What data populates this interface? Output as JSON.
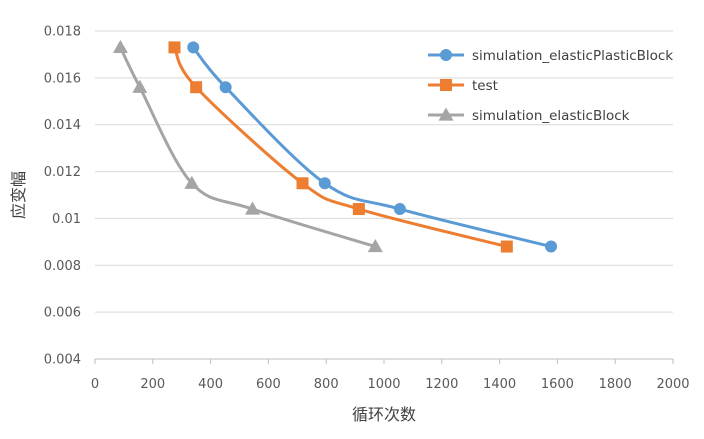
{
  "chart_data": {
    "type": "scatter",
    "title": "",
    "xlabel": "循环次数",
    "ylabel": "应变幅",
    "xlim": [
      0,
      2000
    ],
    "ylim": [
      0.004,
      0.018
    ],
    "x_ticks": [
      "0",
      "200",
      "400",
      "600",
      "800",
      "1000",
      "1200",
      "1400",
      "1600",
      "1800",
      "2000"
    ],
    "y_ticks": [
      "0.004",
      "0.006",
      "0.008",
      "0.01",
      "0.012",
      "0.014",
      "0.016",
      "0.018"
    ],
    "grid": "horizontal",
    "legend_position": "top-right",
    "series": [
      {
        "name": "simulation_elasticPlasticBlock",
        "color": "#5b9bd5",
        "marker": "circle",
        "points": [
          [
            340,
            0.0173
          ],
          [
            452,
            0.0156
          ],
          [
            795,
            0.0115
          ],
          [
            1055,
            0.0104
          ],
          [
            1578,
            0.0088
          ]
        ]
      },
      {
        "name": "test",
        "color": "#ed7d31",
        "marker": "square",
        "points": [
          [
            275,
            0.0173
          ],
          [
            350,
            0.0156
          ],
          [
            718,
            0.0115
          ],
          [
            913,
            0.0104
          ],
          [
            1425,
            0.0088
          ]
        ]
      },
      {
        "name": "simulation_elasticBlock",
        "color": "#a5a5a5",
        "marker": "triangle",
        "points": [
          [
            88,
            0.0173
          ],
          [
            155,
            0.0156
          ],
          [
            335,
            0.0115
          ],
          [
            545,
            0.0104
          ],
          [
            970,
            0.0088
          ]
        ]
      }
    ]
  }
}
